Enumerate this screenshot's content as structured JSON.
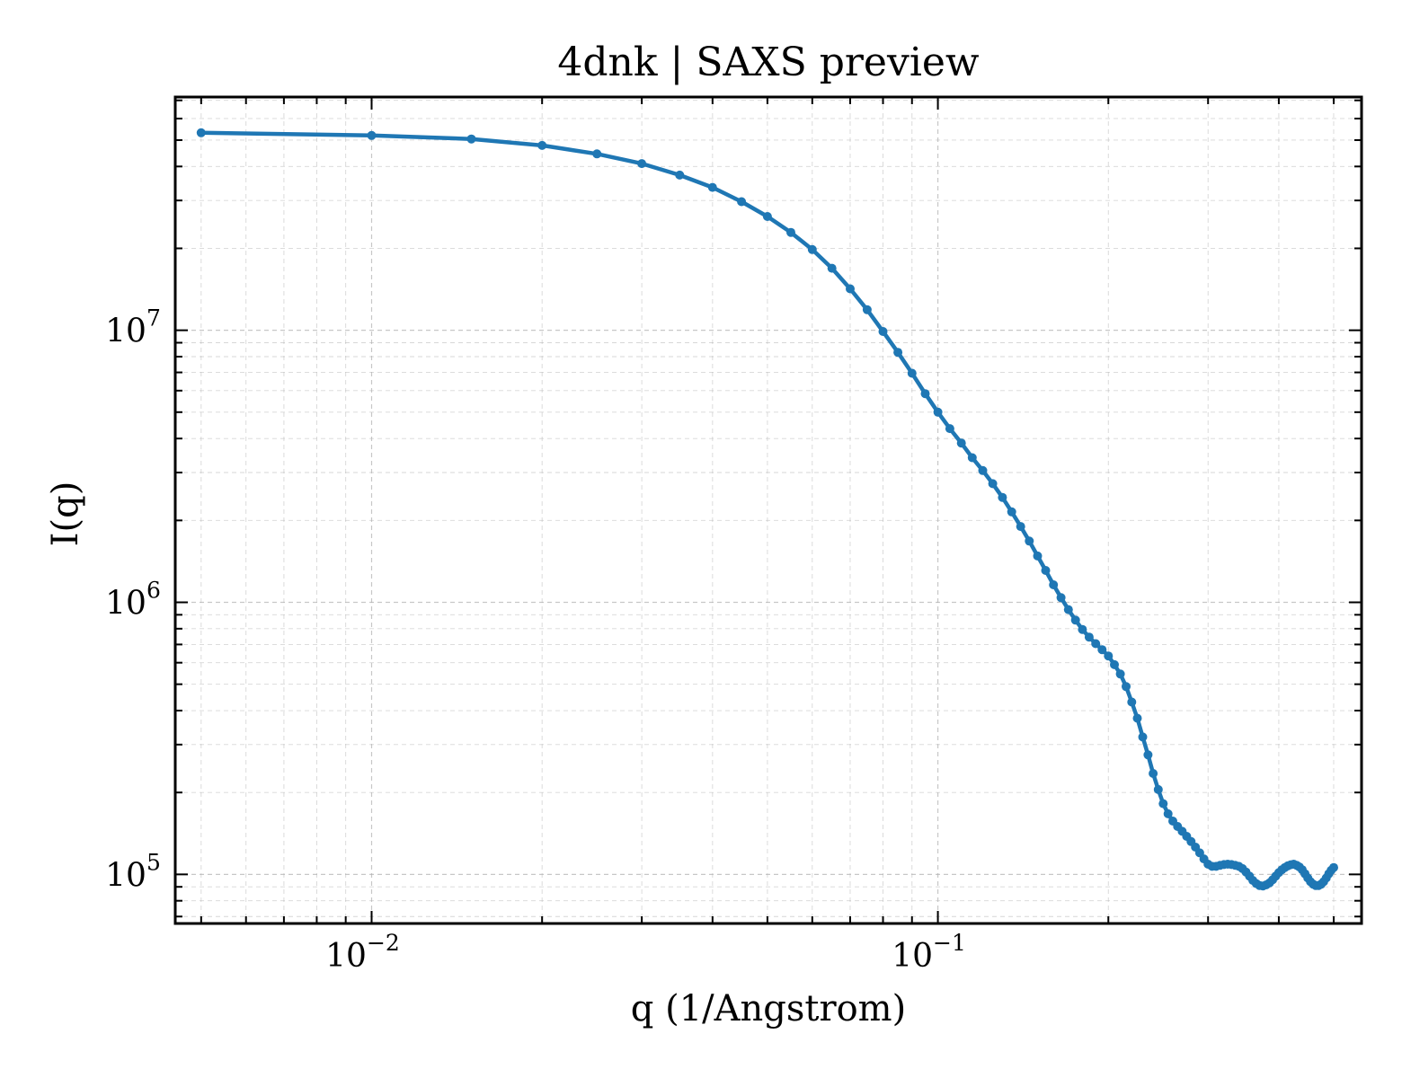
{
  "chart_data": {
    "type": "line",
    "title": "4dnk | SAXS preview",
    "xlabel": "q (1/Angstrom)",
    "ylabel": "I(q)",
    "xscale": "log",
    "yscale": "log",
    "xlim": [
      0.0045,
      0.56
    ],
    "ylim": [
      66000,
      72000000
    ],
    "grid": true,
    "legend": "none",
    "color": "#1f77b4",
    "x_ticks": [
      {
        "base": "10",
        "exp": "−2",
        "value": 0.01
      },
      {
        "base": "10",
        "exp": "−1",
        "value": 0.1
      }
    ],
    "y_ticks": [
      {
        "base": "10",
        "exp": "5",
        "value": 100000
      },
      {
        "base": "10",
        "exp": "6",
        "value": 1000000
      },
      {
        "base": "10",
        "exp": "7",
        "value": 10000000
      }
    ],
    "series": [
      {
        "x": [
          0.005,
          0.01,
          0.015,
          0.02,
          0.025,
          0.03,
          0.035,
          0.04,
          0.045,
          0.05,
          0.055,
          0.06,
          0.065,
          0.07,
          0.075,
          0.08,
          0.085,
          0.09,
          0.095,
          0.1,
          0.105,
          0.11,
          0.115,
          0.12,
          0.125,
          0.13,
          0.135,
          0.14,
          0.145,
          0.15,
          0.155,
          0.16,
          0.165,
          0.17,
          0.175,
          0.18,
          0.185,
          0.19,
          0.195,
          0.2,
          0.205,
          0.21,
          0.215,
          0.22,
          0.225,
          0.23,
          0.235,
          0.24,
          0.245,
          0.25,
          0.255,
          0.26,
          0.265,
          0.27,
          0.275,
          0.28,
          0.285,
          0.29,
          0.295,
          0.3,
          0.305,
          0.31,
          0.315,
          0.32,
          0.325,
          0.33,
          0.335,
          0.34,
          0.345,
          0.35,
          0.355,
          0.36,
          0.365,
          0.37,
          0.375,
          0.38,
          0.385,
          0.39,
          0.395,
          0.4,
          0.405,
          0.41,
          0.415,
          0.42,
          0.425,
          0.43,
          0.435,
          0.44,
          0.445,
          0.45,
          0.455,
          0.46,
          0.465,
          0.47,
          0.475,
          0.48,
          0.485,
          0.49,
          0.495,
          0.5
        ],
        "y": [
          53200000,
          52000000,
          50500000,
          47800000,
          44500000,
          41000000,
          37200000,
          33500000,
          29700000,
          26200000,
          22900000,
          19800000,
          16900000,
          14200000,
          11900000,
          9900000,
          8300000,
          6950000,
          5850000,
          5000000,
          4350000,
          3850000,
          3400000,
          3050000,
          2730000,
          2430000,
          2150000,
          1900000,
          1680000,
          1480000,
          1310000,
          1160000,
          1040000,
          940000,
          860000,
          795000,
          745000,
          705000,
          670000,
          635000,
          590000,
          545000,
          490000,
          430000,
          375000,
          320000,
          275000,
          235000,
          205000,
          182000,
          167000,
          157000,
          150000,
          144000,
          138000,
          132000,
          126000,
          120000,
          114000,
          109000,
          107000,
          107000,
          108000,
          108700,
          109000,
          108700,
          108000,
          107000,
          105000,
          102000,
          98500,
          95000,
          92500,
          91000,
          90700,
          91500,
          93000,
          95500,
          98500,
          101500,
          104000,
          106000,
          107500,
          108500,
          109000,
          108000,
          106500,
          104000,
          100500,
          97000,
          94000,
          92000,
          91000,
          91000,
          92000,
          94000,
          97000,
          100500,
          103500,
          106000
        ]
      }
    ]
  }
}
